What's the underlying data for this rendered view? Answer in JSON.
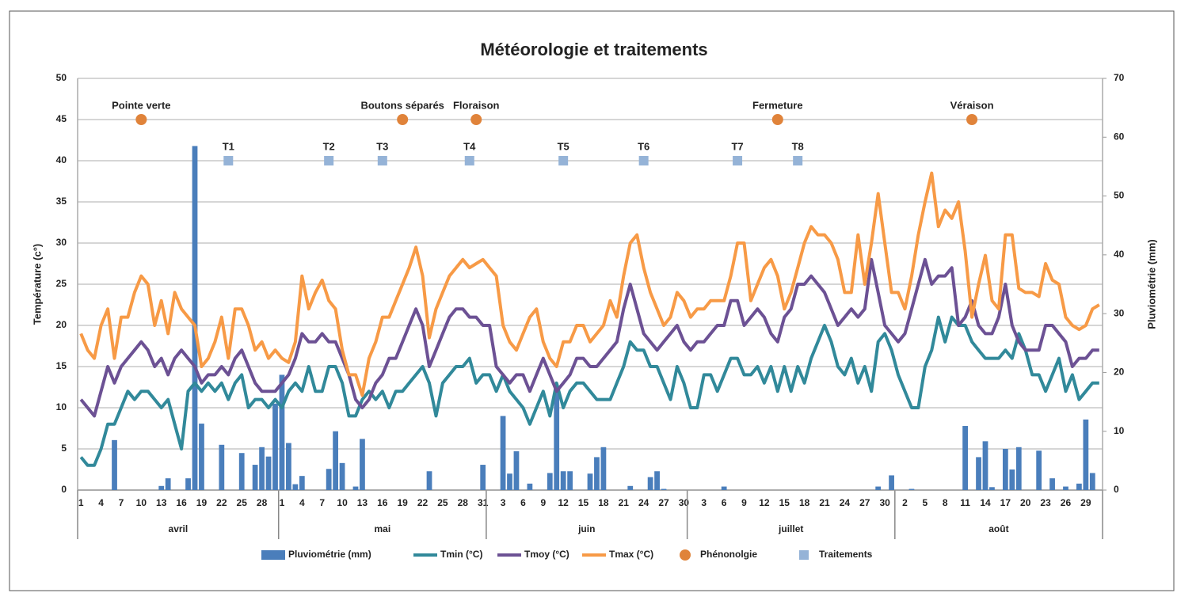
{
  "chart_data": {
    "type": "combo",
    "title": "Météorologie et traitements",
    "y_label": "Température (c°)",
    "y2_label": "Pluviométrie (mm)",
    "ylim": [
      0,
      50
    ],
    "yticks": [
      0,
      5,
      10,
      15,
      20,
      25,
      30,
      35,
      40,
      45,
      50
    ],
    "y2lim": [
      0,
      70
    ],
    "y2ticks": [
      0,
      10,
      20,
      30,
      40,
      50,
      60,
      70
    ],
    "grid": true,
    "months": [
      "avril",
      "mai",
      "juin",
      "juillet",
      "août"
    ],
    "categories": [
      "1",
      null,
      null,
      "4",
      null,
      null,
      "7",
      null,
      null,
      "10",
      null,
      null,
      "13",
      null,
      null,
      "16",
      null,
      null,
      "19",
      null,
      null,
      "22",
      null,
      null,
      "25",
      null,
      null,
      "28",
      null,
      null,
      "1",
      null,
      null,
      "4",
      null,
      null,
      "7",
      null,
      null,
      "10",
      null,
      null,
      "13",
      null,
      null,
      "16",
      null,
      null,
      "19",
      null,
      null,
      "22",
      null,
      null,
      "25",
      null,
      null,
      "28",
      null,
      null,
      "31",
      null,
      null,
      "3",
      null,
      null,
      "6",
      null,
      null,
      "9",
      null,
      null,
      "12",
      null,
      null,
      "15",
      null,
      null,
      "18",
      null,
      null,
      "21",
      null,
      null,
      "24",
      null,
      null,
      "27",
      null,
      null,
      "30",
      null,
      null,
      "3",
      null,
      null,
      "6",
      null,
      null,
      "9",
      null,
      null,
      "12",
      null,
      null,
      "15",
      null,
      null,
      "18",
      null,
      null,
      "21",
      null,
      null,
      "24",
      null,
      null,
      "27",
      null,
      null,
      "30",
      null,
      null,
      "2",
      null,
      null,
      "5",
      null,
      null,
      "8",
      null,
      null,
      "11",
      null,
      null,
      "14",
      null,
      null,
      "17",
      null,
      null,
      "20",
      null,
      null,
      "23",
      null,
      null,
      "26",
      null,
      null,
      "29",
      null,
      null
    ],
    "series": [
      {
        "name": "Pluviométrie (mm)",
        "type": "bar",
        "axis": "y2",
        "color": "#4a7ebb",
        "values": [
          0,
          0,
          0,
          0,
          0,
          8.5,
          0,
          0,
          0,
          0,
          0,
          0,
          0.7,
          2,
          0,
          0,
          2,
          58.5,
          11.3,
          0,
          0,
          7.7,
          0,
          0,
          6.3,
          0,
          4.3,
          7.3,
          5.7,
          14.7,
          19.6,
          8,
          1,
          2.4,
          0,
          0,
          0,
          3.6,
          10,
          4.6,
          0,
          0.6,
          8.7,
          0,
          0,
          0,
          0,
          0,
          0,
          0,
          0,
          0,
          3.2,
          0,
          0,
          0,
          0,
          0,
          0,
          0,
          4.3,
          0,
          0,
          12.6,
          2.8,
          6.6,
          0,
          1.1,
          0,
          0,
          2.9,
          17.5,
          3.2,
          3.2,
          0,
          0,
          2.8,
          5.6,
          7.3,
          0,
          0,
          0,
          0.7,
          0,
          0,
          2.2,
          3.2,
          0.2,
          0,
          0,
          0,
          0,
          0,
          0,
          0,
          0,
          0.6,
          0,
          0,
          0,
          0,
          0,
          0,
          0,
          0,
          0,
          0,
          0,
          0,
          0,
          0,
          0,
          0,
          0,
          0,
          0,
          0,
          0,
          0,
          0.6,
          0,
          2.5,
          0,
          0,
          0.2,
          0,
          0,
          0,
          0,
          0,
          0,
          0,
          10.9,
          0,
          5.6,
          8.3,
          0.5,
          0,
          7,
          3.5,
          7.3,
          0,
          0,
          6.7,
          0,
          2,
          0,
          0.6,
          0,
          1.1,
          12,
          2.9,
          0
        ]
      },
      {
        "name": "Tmin (°C)",
        "type": "line",
        "color": "#31899a",
        "values": [
          4,
          3,
          3,
          5,
          8,
          8,
          10,
          12,
          11,
          12,
          12,
          11,
          10,
          11,
          8,
          5,
          12,
          13,
          12,
          13,
          12,
          13,
          11,
          13,
          14,
          10,
          11,
          11,
          10,
          11,
          10,
          12,
          13,
          12,
          15,
          12,
          12,
          15,
          15,
          13,
          9,
          9,
          11,
          12,
          11,
          12,
          10,
          12,
          12,
          13,
          14,
          15,
          13,
          9,
          13,
          14,
          15,
          15,
          16,
          13,
          14,
          14,
          12,
          14,
          12,
          11,
          10,
          8,
          10,
          12,
          9,
          13,
          10,
          12,
          13,
          13,
          12,
          11,
          11,
          11,
          13,
          15,
          18,
          17,
          17,
          15,
          15,
          13,
          11,
          15,
          13,
          10,
          10,
          14,
          14,
          12,
          14,
          16,
          16,
          14,
          14,
          15,
          13,
          15,
          12,
          15,
          12,
          15,
          13,
          16,
          18,
          20,
          18,
          15,
          14,
          16,
          13,
          15,
          12,
          18,
          19,
          17,
          14,
          12,
          10,
          10,
          15,
          17,
          21,
          18,
          21,
          20,
          20,
          18,
          17,
          16,
          16,
          16,
          17,
          16,
          19,
          17,
          14,
          14,
          12,
          14,
          16,
          12,
          14,
          11,
          12,
          13,
          13
        ]
      },
      {
        "name": "Tmoy (°C)",
        "type": "line",
        "color": "#6c5194",
        "values": [
          11,
          10,
          9,
          12,
          15,
          13,
          15,
          16,
          17,
          18,
          17,
          15,
          16,
          14,
          16,
          17,
          16,
          15,
          13,
          14,
          14,
          15,
          14,
          16,
          17,
          15,
          13,
          12,
          12,
          12,
          13,
          14,
          16,
          19,
          18,
          18,
          19,
          18,
          18,
          16,
          14,
          11,
          10,
          11,
          13,
          14,
          16,
          16,
          18,
          20,
          22,
          20,
          15,
          17,
          19,
          21,
          22,
          22,
          21,
          21,
          20,
          20,
          15,
          14,
          13,
          14,
          14,
          12,
          14,
          16,
          14,
          12,
          13,
          14,
          16,
          16,
          15,
          15,
          16,
          17,
          18,
          22,
          25,
          22,
          19,
          18,
          17,
          18,
          19,
          20,
          18,
          17,
          18,
          18,
          19,
          20,
          20,
          23,
          23,
          20,
          21,
          22,
          21,
          19,
          18,
          21,
          22,
          25,
          25,
          26,
          25,
          24,
          22,
          20,
          21,
          22,
          21,
          22,
          28,
          24,
          20,
          19,
          18,
          19,
          22,
          25,
          28,
          25,
          26,
          26,
          27,
          20,
          21,
          23,
          20,
          19,
          19,
          21,
          25,
          20,
          18,
          17,
          17,
          17,
          20,
          20,
          19,
          18,
          15,
          16,
          16,
          17,
          17
        ]
      },
      {
        "name": "Tmax (°C)",
        "type": "line",
        "color": "#f79a46",
        "values": [
          19,
          17,
          16,
          20,
          22,
          16,
          21,
          21,
          24,
          26,
          25,
          20,
          23,
          19,
          24,
          22,
          21,
          20,
          15,
          16,
          18,
          21,
          16,
          22,
          22,
          20,
          17,
          18,
          16,
          17,
          16,
          15.5,
          18,
          26,
          22,
          24,
          25.5,
          23,
          22,
          17,
          14,
          14,
          11.5,
          16,
          18,
          21,
          21,
          23,
          25,
          27,
          29.5,
          26,
          18.5,
          22,
          24,
          26,
          27,
          28,
          27,
          27.5,
          28,
          27,
          26,
          20,
          18,
          17,
          19,
          21,
          22,
          18,
          16,
          15,
          18,
          18,
          20,
          20,
          18,
          19,
          20,
          23,
          21,
          26,
          30,
          31,
          27,
          24,
          22,
          20,
          21,
          24,
          23,
          21,
          22,
          22,
          23,
          23,
          23,
          26,
          30,
          30,
          23,
          25,
          27,
          28,
          26,
          22,
          24,
          27,
          30,
          32,
          31,
          31,
          30,
          28,
          24,
          24,
          31,
          25,
          30,
          36,
          30,
          24,
          24,
          22,
          26,
          31,
          35,
          38.5,
          32,
          34,
          33,
          35,
          29,
          21,
          25,
          28.5,
          23,
          22,
          31,
          31,
          24.5,
          24,
          24,
          23.5,
          27.5,
          25.5,
          25,
          21,
          20,
          19.5,
          20,
          22,
          22.5
        ]
      },
      {
        "name": "Phénonolgie",
        "type": "scatter",
        "marker": "circle",
        "color": "#e0833a",
        "x": [
          9,
          48,
          59,
          104,
          133
        ],
        "values": [
          45,
          45,
          45,
          45,
          45
        ],
        "point_labels": [
          "Pointe verte",
          "Boutons séparés",
          "Floraison",
          "Fermeture",
          "Véraison"
        ]
      },
      {
        "name": "Traitements",
        "type": "scatter",
        "marker": "square",
        "color": "#95b3d7",
        "x": [
          22,
          37,
          45,
          58,
          72,
          84,
          98,
          107
        ],
        "values": [
          40,
          40,
          40,
          40,
          40,
          40,
          40,
          40
        ],
        "point_labels": [
          "T1",
          "T2",
          "T3",
          "T4",
          "T5",
          "T6",
          "T7",
          "T8"
        ]
      }
    ]
  }
}
